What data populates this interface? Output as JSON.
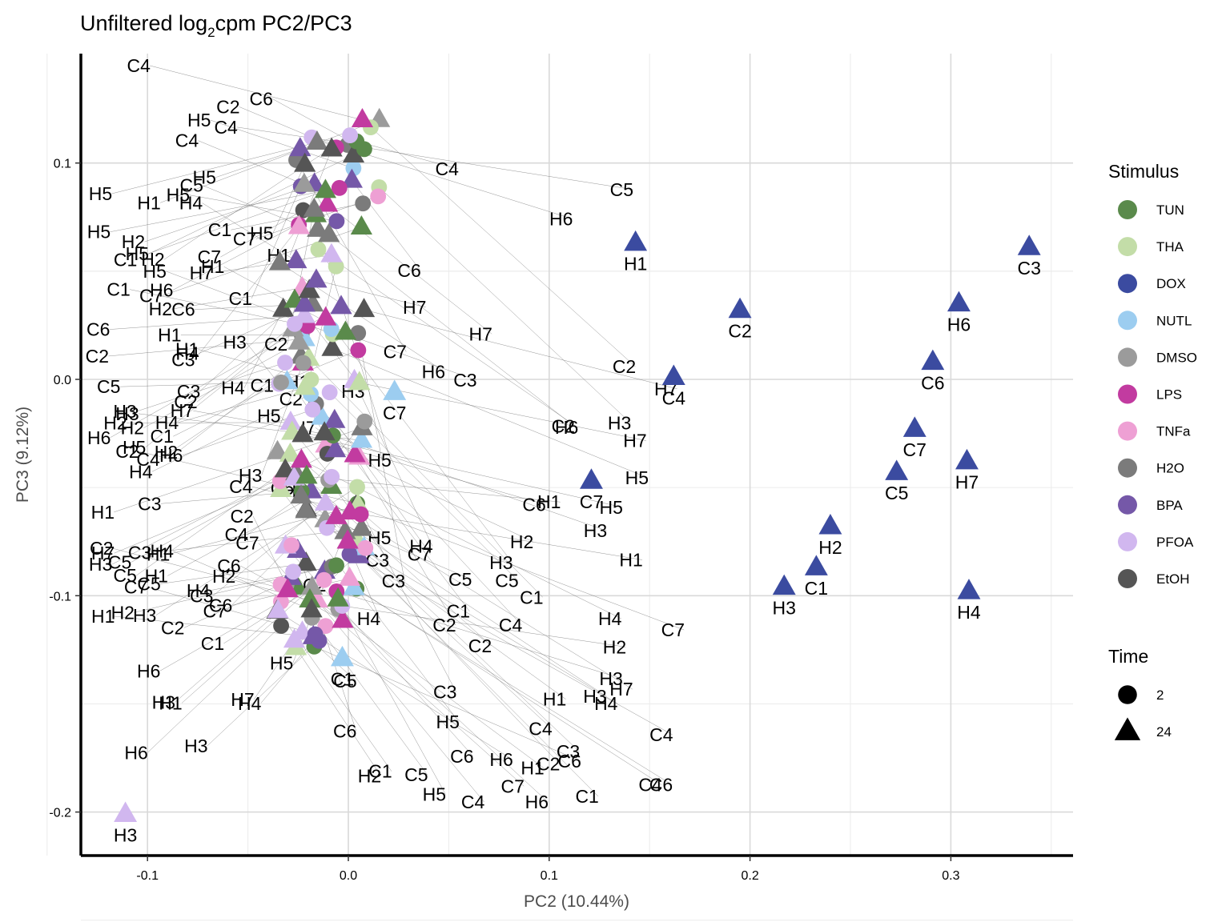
{
  "title": {
    "main": "Unfiltered log",
    "sub": "2",
    "rest": "cpm PC2/PC3"
  },
  "chart_data": {
    "type": "scatter",
    "title": "Unfiltered log2cpm PC2/PC3",
    "xlabel": "PC2 (10.44%)",
    "ylabel": "PC3 (9.12%)",
    "xlim": [
      -0.133,
      0.36
    ],
    "ylim": [
      -0.22,
      0.15
    ],
    "xticks": [
      -0.1,
      0.0,
      0.1,
      0.2,
      0.3
    ],
    "xtick_labels": [
      "-0.1",
      "0.0",
      "0.1",
      "0.2",
      "0.3"
    ],
    "yticks": [
      -0.2,
      -0.1,
      0.0,
      0.1
    ],
    "ytick_labels": [
      "-0.2",
      "-0.1",
      "0.0",
      "0.1"
    ],
    "grid": true,
    "legend_position": "right",
    "colors": {
      "TUN": "#5a8a4b",
      "THA": "#c3dda8",
      "DOX": "#3b4ba0",
      "NUTL": "#9ccdf0",
      "DMSO": "#9b9b9b",
      "LPS": "#c23ba0",
      "TNFa": "#eea0d4",
      "H2O": "#7b7b7b",
      "BPA": "#7558a8",
      "PFOA": "#d1b7ef",
      "EtOH": "#555555"
    },
    "highlighted_points": [
      {
        "label": "H1",
        "x": 0.143,
        "y": 0.063,
        "stimulus": "DOX",
        "time": "24"
      },
      {
        "label": "C3",
        "x": 0.339,
        "y": 0.061,
        "stimulus": "DOX",
        "time": "24"
      },
      {
        "label": "C2",
        "x": 0.195,
        "y": 0.032,
        "stimulus": "DOX",
        "time": "24"
      },
      {
        "label": "H6",
        "x": 0.304,
        "y": 0.035,
        "stimulus": "DOX",
        "time": "24"
      },
      {
        "label": "C6",
        "x": 0.291,
        "y": 0.008,
        "stimulus": "DOX",
        "time": "24"
      },
      {
        "label": "C4",
        "x": 0.162,
        "y": 0.001,
        "stimulus": "DOX",
        "time": "24"
      },
      {
        "label": "C7",
        "x": 0.282,
        "y": -0.023,
        "stimulus": "DOX",
        "time": "24"
      },
      {
        "label": "H7",
        "x": 0.308,
        "y": -0.038,
        "stimulus": "DOX",
        "time": "24"
      },
      {
        "label": "C5",
        "x": 0.273,
        "y": -0.043,
        "stimulus": "DOX",
        "time": "24"
      },
      {
        "label": "C7",
        "x": 0.121,
        "y": -0.047,
        "stimulus": "DOX",
        "time": "24"
      },
      {
        "label": "H2",
        "x": 0.24,
        "y": -0.068,
        "stimulus": "DOX",
        "time": "24"
      },
      {
        "label": "C1",
        "x": 0.233,
        "y": -0.087,
        "stimulus": "DOX",
        "time": "24"
      },
      {
        "label": "H3",
        "x": 0.217,
        "y": -0.096,
        "stimulus": "DOX",
        "time": "24"
      },
      {
        "label": "H4",
        "x": 0.309,
        "y": -0.098,
        "stimulus": "DOX",
        "time": "24"
      },
      {
        "label": "H3",
        "x": -0.111,
        "y": -0.201,
        "stimulus": "PFOA",
        "time": "24"
      },
      {
        "label": "C7",
        "x": 0.023,
        "y": -0.006,
        "stimulus": "NUTL",
        "time": "24"
      },
      {
        "label": "C1",
        "x": -0.003,
        "y": -0.129,
        "stimulus": "NUTL",
        "time": "24"
      }
    ],
    "stimulus_order": [
      "TUN",
      "THA",
      "DOX",
      "NUTL",
      "DMSO",
      "LPS",
      "TNFa",
      "H2O",
      "BPA",
      "PFOA",
      "EtOH"
    ],
    "time_legend": [
      {
        "label": "2",
        "shape": "circle"
      },
      {
        "label": "24",
        "shape": "triangle"
      }
    ],
    "cluster_note": "About 180 remaining samples (all stimuli, both times) overlap in a narrow column at PC2 between -0.04 and 0.01 with text labels repelled to the left and lower area."
  },
  "legend": {
    "stimulus_title": "Stimulus",
    "time_title": "Time",
    "stimulus_items": [
      "TUN",
      "THA",
      "DOX",
      "NUTL",
      "DMSO",
      "LPS",
      "TNFa",
      "H2O",
      "BPA",
      "PFOA",
      "EtOH"
    ],
    "time_items": [
      "2",
      "24"
    ]
  }
}
